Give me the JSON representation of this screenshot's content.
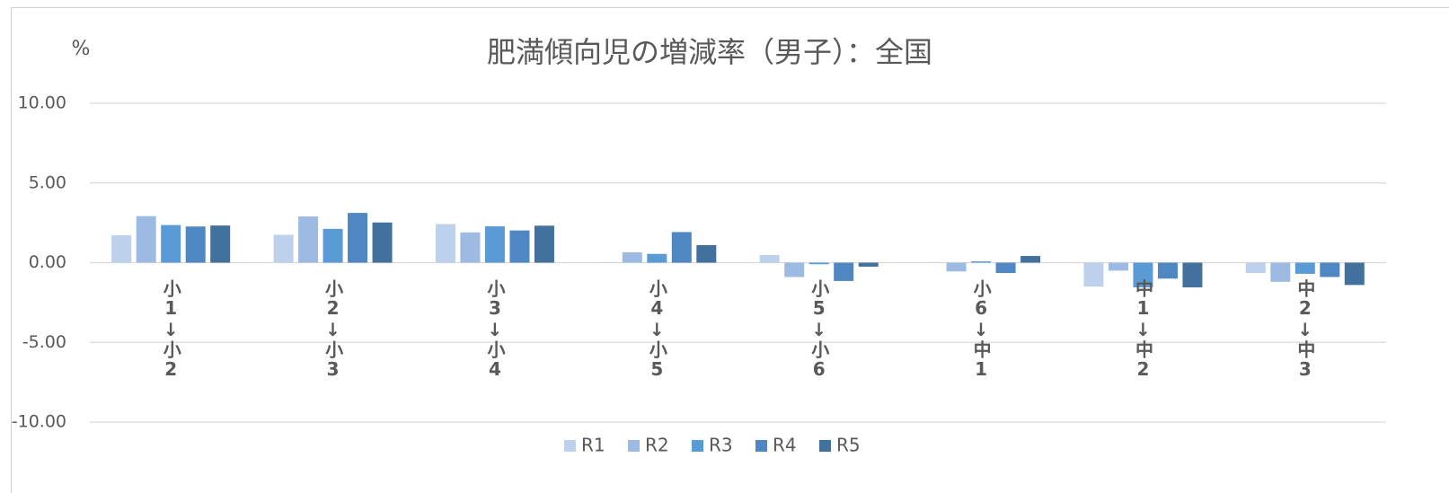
{
  "chart_data": {
    "type": "bar",
    "title": "肥満傾向児の増減率（男子）：全国",
    "y_label": "%",
    "categories": [
      "小1↓小2",
      "小2↓小3",
      "小3↓小4",
      "小4↓小5",
      "小5↓小6",
      "小6↓中1",
      "中1↓中2",
      "中2↓中3"
    ],
    "series": [
      {
        "name": "R1",
        "color": "#bdd1ec",
        "values": [
          1.72,
          1.75,
          2.42,
          0.03,
          0.48,
          0.02,
          -1.5,
          -0.65
        ]
      },
      {
        "name": "R2",
        "color": "#9dbbe2",
        "values": [
          2.92,
          2.9,
          1.9,
          0.65,
          -0.9,
          -0.55,
          -0.5,
          -1.2
        ]
      },
      {
        "name": "R3",
        "color": "#5b9bd5",
        "values": [
          2.36,
          2.12,
          2.28,
          0.55,
          -0.1,
          0.08,
          -1.55,
          -0.7
        ]
      },
      {
        "name": "R4",
        "color": "#4e87c1",
        "values": [
          2.27,
          3.12,
          2.02,
          1.92,
          -1.15,
          -0.65,
          -1.0,
          -0.9
        ]
      },
      {
        "name": "R5",
        "color": "#41719c",
        "values": [
          2.33,
          2.52,
          2.32,
          1.1,
          -0.25,
          0.42,
          -1.55,
          -1.4
        ]
      }
    ],
    "ylim": [
      -10,
      10
    ],
    "yticks": [
      {
        "value": -10,
        "label": "-10.00"
      },
      {
        "value": -5,
        "label": "-5.00"
      },
      {
        "value": 0,
        "label": "0.00"
      },
      {
        "value": 5,
        "label": "5.00"
      },
      {
        "value": 10,
        "label": "10.00"
      }
    ],
    "grid": true,
    "legend": "bottom"
  }
}
